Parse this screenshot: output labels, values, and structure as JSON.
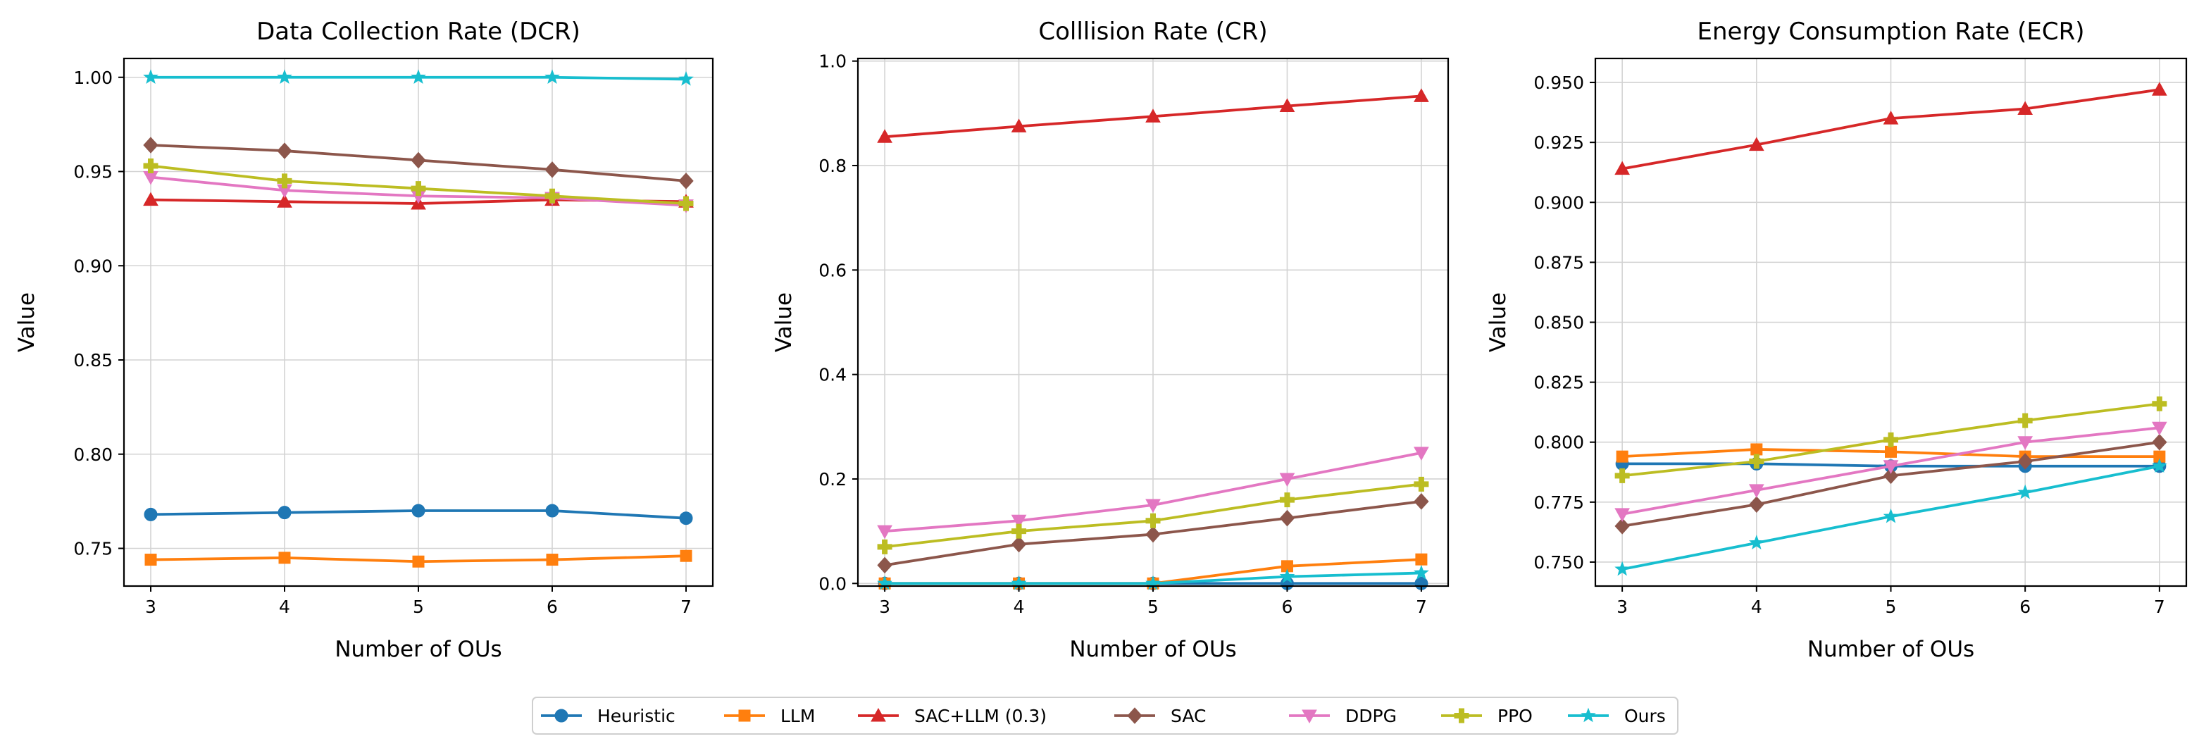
{
  "chart_data": [
    {
      "type": "line",
      "title": "Data Collection Rate (DCR)",
      "xlabel": "Number of OUs",
      "ylabel": "Value",
      "x": [
        3,
        4,
        5,
        6,
        7
      ],
      "xlim": [
        2.8,
        7.2
      ],
      "ylim": [
        0.73,
        1.01
      ],
      "yticks": [
        0.75,
        0.8,
        0.85,
        0.9,
        0.95,
        1.0
      ],
      "ytick_labels": [
        "0.75",
        "0.80",
        "0.85",
        "0.90",
        "0.95",
        "1.00"
      ],
      "grid": true,
      "series": [
        {
          "name": "Heuristic",
          "values": [
            0.768,
            0.769,
            0.77,
            0.77,
            0.766
          ]
        },
        {
          "name": "LLM",
          "values": [
            0.744,
            0.745,
            0.743,
            0.744,
            0.746
          ]
        },
        {
          "name": "SAC+LLM (0.3)",
          "values": [
            0.935,
            0.934,
            0.933,
            0.935,
            0.934
          ]
        },
        {
          "name": "SAC",
          "values": [
            0.964,
            0.961,
            0.956,
            0.951,
            0.945
          ]
        },
        {
          "name": "DDPG",
          "values": [
            0.947,
            0.94,
            0.937,
            0.936,
            0.932
          ]
        },
        {
          "name": "PPO",
          "values": [
            0.953,
            0.945,
            0.941,
            0.937,
            0.933
          ]
        },
        {
          "name": "Ours",
          "values": [
            1.0,
            1.0,
            1.0,
            1.0,
            0.999
          ]
        }
      ]
    },
    {
      "type": "line",
      "title": "Colllision Rate (CR)",
      "xlabel": "Number of OUs",
      "ylabel": "Value",
      "x": [
        3,
        4,
        5,
        6,
        7
      ],
      "xlim": [
        2.8,
        7.2
      ],
      "ylim": [
        -0.005,
        1.005
      ],
      "yticks": [
        0.0,
        0.2,
        0.4,
        0.6,
        0.8,
        1.0
      ],
      "ytick_labels": [
        "0.0",
        "0.2",
        "0.4",
        "0.6",
        "0.8",
        "1.0"
      ],
      "grid": true,
      "series": [
        {
          "name": "Heuristic",
          "values": [
            0.0,
            0.0,
            0.0,
            0.0,
            0.0
          ]
        },
        {
          "name": "LLM",
          "values": [
            0.0,
            0.0,
            0.0,
            0.033,
            0.046
          ]
        },
        {
          "name": "SAC+LLM (0.3)",
          "values": [
            0.855,
            0.875,
            0.894,
            0.914,
            0.933
          ]
        },
        {
          "name": "SAC",
          "values": [
            0.035,
            0.075,
            0.094,
            0.125,
            0.157
          ]
        },
        {
          "name": "DDPG",
          "values": [
            0.1,
            0.12,
            0.15,
            0.2,
            0.25
          ]
        },
        {
          "name": "PPO",
          "values": [
            0.07,
            0.1,
            0.12,
            0.16,
            0.19
          ]
        },
        {
          "name": "Ours",
          "values": [
            0.0,
            0.0,
            0.0,
            0.013,
            0.02
          ]
        }
      ]
    },
    {
      "type": "line",
      "title": "Energy Consumption Rate (ECR)",
      "xlabel": "Number of OUs",
      "ylabel": "Value",
      "x": [
        3,
        4,
        5,
        6,
        7
      ],
      "xlim": [
        2.8,
        7.2
      ],
      "ylim": [
        0.74,
        0.96
      ],
      "yticks": [
        0.75,
        0.775,
        0.8,
        0.825,
        0.85,
        0.875,
        0.9,
        0.925,
        0.95
      ],
      "ytick_labels": [
        "0.750",
        "0.775",
        "0.800",
        "0.825",
        "0.850",
        "0.875",
        "0.900",
        "0.925",
        "0.950"
      ],
      "grid": true,
      "series": [
        {
          "name": "Heuristic",
          "values": [
            0.791,
            0.791,
            0.79,
            0.79,
            0.79
          ]
        },
        {
          "name": "LLM",
          "values": [
            0.794,
            0.797,
            0.796,
            0.794,
            0.794
          ]
        },
        {
          "name": "SAC+LLM (0.3)",
          "values": [
            0.914,
            0.924,
            0.935,
            0.939,
            0.947
          ]
        },
        {
          "name": "SAC",
          "values": [
            0.765,
            0.774,
            0.786,
            0.792,
            0.8
          ]
        },
        {
          "name": "DDPG",
          "values": [
            0.77,
            0.78,
            0.79,
            0.8,
            0.806
          ]
        },
        {
          "name": "PPO",
          "values": [
            0.786,
            0.792,
            0.801,
            0.809,
            0.816
          ]
        },
        {
          "name": "Ours",
          "values": [
            0.747,
            0.758,
            0.769,
            0.779,
            0.79
          ]
        }
      ]
    }
  ],
  "legend": {
    "position": "bottom-center",
    "entries": [
      {
        "name": "Heuristic",
        "color": "#1f77b4",
        "marker": "circle"
      },
      {
        "name": "LLM",
        "color": "#ff7f0e",
        "marker": "square"
      },
      {
        "name": "SAC+LLM (0.3)",
        "color": "#d62728",
        "marker": "triangle-up"
      },
      {
        "name": "SAC",
        "color": "#8c564b",
        "marker": "diamond"
      },
      {
        "name": "DDPG",
        "color": "#e377c2",
        "marker": "triangle-down"
      },
      {
        "name": "PPO",
        "color": "#bcbd22",
        "marker": "plus-filled"
      },
      {
        "name": "Ours",
        "color": "#17becf",
        "marker": "star"
      }
    ]
  }
}
